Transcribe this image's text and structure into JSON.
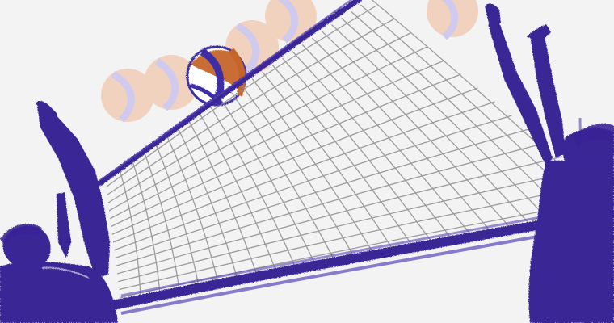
{
  "image": {
    "kind": "illustration",
    "subject": "volleyball",
    "colors": {
      "background": "#f3f3f4",
      "ink": "#3a2596",
      "ink_light": "#5a46b8",
      "ball_orange": "#c4652a",
      "ball_blue": "#3e2fa6",
      "ball_ghost_orange": "#f1cdb6",
      "ball_ghost_blue": "#c9c4ee",
      "net_grid": "#8c8c8c"
    }
  }
}
